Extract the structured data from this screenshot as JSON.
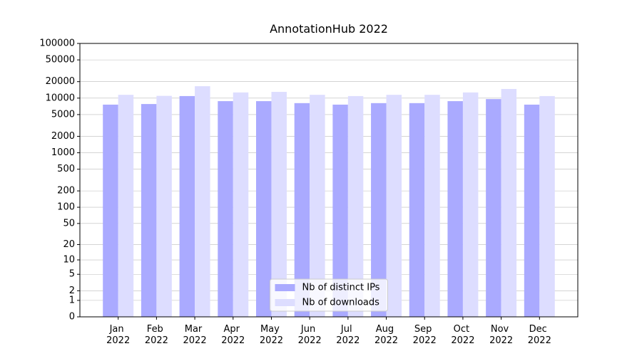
{
  "chart_data": {
    "type": "bar",
    "title": "AnnotationHub 2022",
    "categories": [
      "Jan 2022",
      "Feb 2022",
      "Mar 2022",
      "Apr 2022",
      "May 2022",
      "Jun 2022",
      "Jul 2022",
      "Aug 2022",
      "Sep 2022",
      "Oct 2022",
      "Nov 2022",
      "Dec 2022"
    ],
    "series": [
      {
        "name": "Nb of distinct IPs",
        "color": "#aaaaff",
        "values": [
          7600,
          7800,
          10900,
          8800,
          8800,
          8100,
          7600,
          8100,
          8100,
          8800,
          9600,
          7600
        ]
      },
      {
        "name": "Nb of downloads",
        "color": "#ddddff",
        "values": [
          11500,
          11000,
          16500,
          12700,
          13000,
          11500,
          10900,
          11500,
          11500,
          12700,
          14700,
          10900
        ]
      }
    ],
    "yscale": "log1p",
    "ylim": [
      0,
      100000
    ],
    "yticks": [
      0,
      1,
      2,
      5,
      10,
      20,
      50,
      100,
      200,
      500,
      1000,
      2000,
      5000,
      10000,
      20000,
      50000,
      100000
    ],
    "grid": true,
    "legend": "lower center"
  }
}
